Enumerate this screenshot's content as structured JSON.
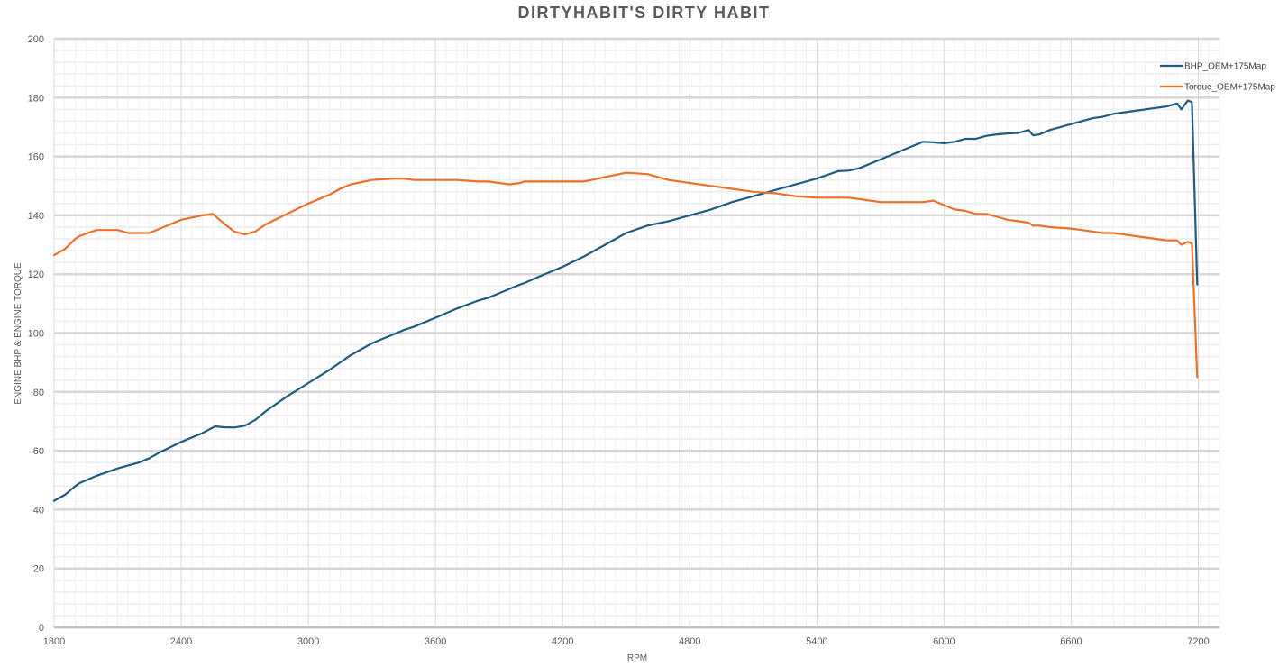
{
  "chart_data": {
    "type": "line",
    "title": "DIRTYHABIT'S DIRTY HABIT",
    "xlabel": "RPM",
    "ylabel": "ENGINE BHP & ENGINE TORQUE",
    "xlim": [
      1800,
      7300
    ],
    "ylim": [
      0,
      200
    ],
    "xticks": [
      "1800",
      "2400",
      "3000",
      "3600",
      "4200",
      "4800",
      "5400",
      "6000",
      "6600",
      "7200"
    ],
    "yticks": [
      "0",
      "20",
      "40",
      "60",
      "80",
      "100",
      "120",
      "140",
      "160",
      "180",
      "200"
    ],
    "grid": true,
    "legend_position": "top-right",
    "series": [
      {
        "name": "BHP_OEM+175Map",
        "color": "#1f5c80",
        "x": [
          1800,
          1850,
          1900,
          1920,
          2000,
          2100,
          2200,
          2250,
          2300,
          2400,
          2500,
          2560,
          2600,
          2650,
          2700,
          2750,
          2800,
          2900,
          3000,
          3100,
          3150,
          3200,
          3300,
          3400,
          3450,
          3500,
          3600,
          3700,
          3800,
          3850,
          3900,
          3950,
          4000,
          4020,
          4100,
          4200,
          4300,
          4400,
          4500,
          4600,
          4700,
          4800,
          4900,
          5000,
          5100,
          5200,
          5300,
          5400,
          5500,
          5550,
          5600,
          5700,
          5800,
          5900,
          5950,
          6000,
          6050,
          6100,
          6150,
          6200,
          6250,
          6300,
          6350,
          6400,
          6420,
          6450,
          6500,
          6600,
          6650,
          6700,
          6750,
          6800,
          6850,
          6900,
          6950,
          7000,
          7050,
          7100,
          7120,
          7150,
          7170,
          7195
        ],
        "values": [
          43,
          45,
          48,
          49,
          51.5,
          54,
          56,
          57.5,
          59.5,
          63,
          66,
          68.3,
          68,
          67.9,
          68.5,
          70.5,
          73.5,
          78.5,
          83,
          87.5,
          90,
          92.5,
          96.5,
          99.5,
          101,
          102.2,
          105.2,
          108.3,
          111,
          112,
          113.5,
          115,
          116.5,
          117,
          119.5,
          122.5,
          126,
          130,
          134,
          136.5,
          138,
          140,
          142,
          144.5,
          146.5,
          148.5,
          150.5,
          152.5,
          155,
          155.2,
          156,
          159,
          162,
          165,
          164.8,
          164.5,
          165,
          166,
          166,
          167,
          167.5,
          167.8,
          168,
          169,
          167.2,
          167.5,
          169,
          171,
          172,
          173,
          173.5,
          174.5,
          175,
          175.5,
          176,
          176.5,
          177,
          178,
          176,
          179,
          178.5,
          116.5
        ]
      },
      {
        "name": "Torque_OEM+175Map",
        "color": "#e9712b",
        "x": [
          1800,
          1850,
          1900,
          1920,
          2000,
          2100,
          2150,
          2250,
          2300,
          2400,
          2500,
          2550,
          2580,
          2650,
          2700,
          2750,
          2800,
          2900,
          3000,
          3100,
          3150,
          3200,
          3300,
          3400,
          3450,
          3500,
          3600,
          3700,
          3800,
          3850,
          3950,
          4000,
          4020,
          4100,
          4200,
          4300,
          4400,
          4500,
          4600,
          4700,
          4800,
          4900,
          5000,
          5100,
          5200,
          5300,
          5400,
          5500,
          5550,
          5600,
          5700,
          5800,
          5900,
          5950,
          6000,
          6050,
          6100,
          6150,
          6200,
          6250,
          6300,
          6350,
          6400,
          6420,
          6450,
          6500,
          6600,
          6650,
          6700,
          6750,
          6800,
          6850,
          6900,
          6950,
          7000,
          7050,
          7100,
          7120,
          7150,
          7170,
          7195
        ],
        "values": [
          126.5,
          128.5,
          132,
          133,
          135,
          135,
          134,
          134,
          135.5,
          138.5,
          140,
          140.5,
          138.5,
          134.5,
          133.5,
          134.5,
          137,
          140.5,
          144,
          147,
          149,
          150.5,
          152,
          152.5,
          152.5,
          152,
          152,
          152,
          151.5,
          151.5,
          150.5,
          151,
          151.5,
          151.5,
          151.5,
          151.5,
          153,
          154.5,
          154,
          152,
          151,
          150,
          149,
          148,
          147.5,
          146.5,
          146,
          146,
          146,
          145.5,
          144.5,
          144.5,
          144.5,
          145,
          143.5,
          142,
          141.5,
          140.5,
          140.5,
          139.5,
          138.5,
          138,
          137.5,
          136.5,
          136.5,
          136,
          135.5,
          135,
          134.5,
          134,
          134,
          133.5,
          133,
          132.5,
          132,
          131.5,
          131.5,
          130,
          131,
          130.5,
          85
        ]
      }
    ]
  }
}
